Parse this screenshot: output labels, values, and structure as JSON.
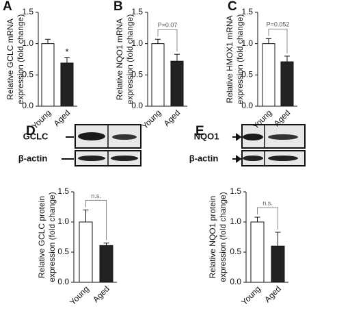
{
  "chart_data": [
    {
      "type": "bar",
      "panel": "A",
      "ylabel": [
        "Relative GCLC mRNA",
        "expression (fold change)"
      ],
      "categories": [
        "Young",
        "Aged"
      ],
      "values": [
        1.0,
        0.69
      ],
      "errors": [
        0.07,
        0.09
      ],
      "colors": [
        "#ffffff",
        "#222222"
      ],
      "ylim": [
        0,
        1.5
      ],
      "yticks": [
        {
          "value": 0,
          "label": "0.0"
        },
        {
          "value": 0.5,
          "label": "0.5"
        },
        {
          "value": 1,
          "label": "1.0"
        },
        {
          "value": 1.5,
          "label": "1.5"
        }
      ],
      "significance": {
        "label": "*",
        "style": "star"
      }
    },
    {
      "type": "bar",
      "panel": "B",
      "ylabel": [
        "Relative NQO1 mRNA",
        "expression (fold change)"
      ],
      "categories": [
        "Young",
        "Aged"
      ],
      "values": [
        1.0,
        0.72
      ],
      "errors": [
        0.07,
        0.11
      ],
      "colors": [
        "#ffffff",
        "#222222"
      ],
      "ylim": [
        0,
        1.5
      ],
      "yticks": [
        {
          "value": 0,
          "label": "0.0"
        },
        {
          "value": 0.5,
          "label": "0.5"
        },
        {
          "value": 1,
          "label": "1.0"
        },
        {
          "value": 1.5,
          "label": "1.5"
        }
      ],
      "significance": {
        "label": "P=0.07",
        "style": "bracket"
      }
    },
    {
      "type": "bar",
      "panel": "C",
      "ylabel": [
        "Relative HMOX1 mRNA",
        "expression (fold change)"
      ],
      "categories": [
        "Young",
        "Aged"
      ],
      "values": [
        1.0,
        0.71
      ],
      "errors": [
        0.08,
        0.09
      ],
      "colors": [
        "#ffffff",
        "#222222"
      ],
      "ylim": [
        0,
        1.5
      ],
      "yticks": [
        {
          "value": 0,
          "label": "0.0"
        },
        {
          "value": 0.5,
          "label": "0.5"
        },
        {
          "value": 1,
          "label": "1.0"
        },
        {
          "value": 1.5,
          "label": "1.5"
        }
      ],
      "significance": {
        "label": "P=0.052",
        "style": "bracket"
      }
    },
    {
      "type": "bar",
      "panel": "D",
      "blot_labels": [
        "GCLC",
        "β-actin"
      ],
      "ylabel": [
        "Relative GCLC protein",
        "expression (fold change)"
      ],
      "categories": [
        "Young",
        "Aged"
      ],
      "values": [
        1.0,
        0.61
      ],
      "errors": [
        0.2,
        0.04
      ],
      "colors": [
        "#ffffff",
        "#222222"
      ],
      "ylim": [
        0,
        1.5
      ],
      "yticks": [
        {
          "value": 0,
          "label": "0.0"
        },
        {
          "value": 0.5,
          "label": "0.5"
        },
        {
          "value": 1,
          "label": "1.0"
        },
        {
          "value": 1.5,
          "label": "1.5"
        }
      ],
      "significance": {
        "label": "n.s.",
        "style": "bracket"
      }
    },
    {
      "type": "bar",
      "panel": "E",
      "blot_labels": [
        "NQO1",
        "β-actin"
      ],
      "ylabel": [
        "Relative NQO1 protein",
        "expression (fold change)"
      ],
      "categories": [
        "Young",
        "Aged"
      ],
      "values": [
        1.0,
        0.6
      ],
      "errors": [
        0.08,
        0.23
      ],
      "colors": [
        "#ffffff",
        "#222222"
      ],
      "ylim": [
        0,
        1.5
      ],
      "yticks": [
        {
          "value": 0,
          "label": "0.0"
        },
        {
          "value": 0.5,
          "label": "0.5"
        },
        {
          "value": 1,
          "label": "1.0"
        },
        {
          "value": 1.5,
          "label": "1.5"
        }
      ],
      "significance": {
        "label": "n.s.",
        "style": "bracket"
      }
    }
  ]
}
